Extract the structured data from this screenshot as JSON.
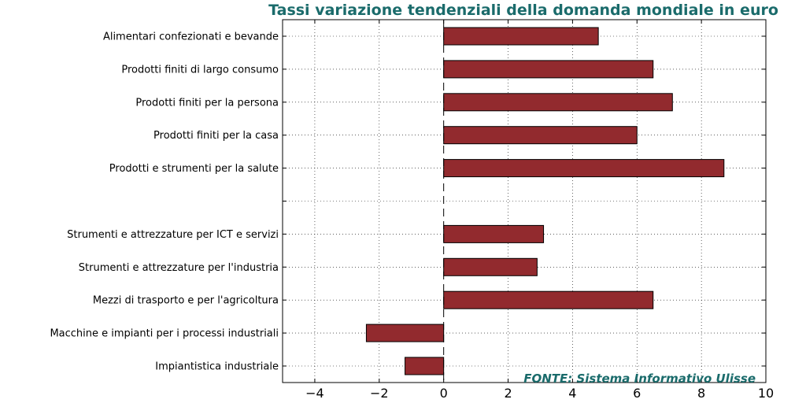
{
  "chart_data": {
    "type": "bar",
    "orientation": "horizontal",
    "title": "Tassi variazione tendenziali della domanda mondiale in euro",
    "source_note": "FONTE: Sistema Informativo Ulisse",
    "categories": [
      "Alimentari confezionati e bevande",
      "Prodotti finiti di largo consumo",
      "Prodotti finiti per la persona",
      "Prodotti finiti per la casa",
      "Prodotti e strumenti per la salute",
      "",
      "Strumenti e attrezzature per ICT e servizi",
      "Strumenti e attrezzature per l'industria",
      "Mezzi di trasporto e per l'agricoltura",
      "Macchine e impianti per i processi industriali",
      "Impiantistica industriale"
    ],
    "values": [
      4.8,
      6.5,
      7.1,
      6.0,
      8.7,
      0,
      3.1,
      2.9,
      6.5,
      -2.4,
      -1.2
    ],
    "xlim": [
      -5,
      10
    ],
    "xticks": [
      -4,
      -2,
      0,
      2,
      4,
      6,
      8,
      10
    ],
    "xtick_labels": [
      "−4",
      "−2",
      "0",
      "2",
      "4",
      "6",
      "8",
      "10"
    ],
    "bar_color": "#922a2e",
    "title_color": "#1a6b6b",
    "grid": true,
    "zero_line": "dashed"
  }
}
